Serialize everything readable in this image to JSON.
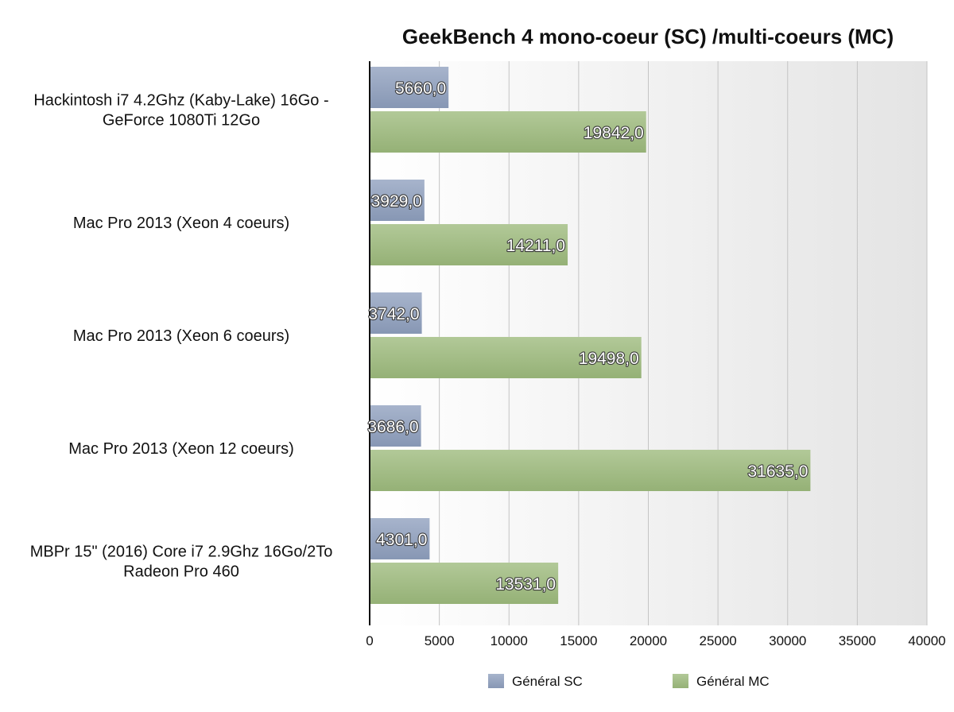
{
  "chart_data": {
    "type": "bar",
    "orientation": "horizontal",
    "title": "GeekBench 4  mono-coeur (SC) /multi-coeurs (MC)",
    "categories": [
      "Hackintosh i7 4.2Ghz (Kaby-Lake) 16Go - GeForce 1080Ti 12Go",
      "Mac Pro 2013 (Xeon 4 coeurs)",
      "Mac Pro 2013 (Xeon 6 coeurs)",
      "Mac Pro 2013 (Xeon 12 coeurs)",
      "MBPr 15\" (2016) Core i7 2.9Ghz 16Go/2To Radeon Pro 460"
    ],
    "category_lines": [
      [
        "Hackintosh i7 4.2Ghz (Kaby-Lake) 16Go -",
        "GeForce 1080Ti 12Go"
      ],
      [
        "Mac Pro 2013 (Xeon 4 coeurs)"
      ],
      [
        "Mac Pro 2013 (Xeon 6 coeurs)"
      ],
      [
        "Mac Pro 2013 (Xeon 12 coeurs)"
      ],
      [
        "MBPr 15\" (2016) Core i7 2.9Ghz 16Go/2To",
        "Radeon Pro 460"
      ]
    ],
    "series": [
      {
        "name": "Général SC",
        "color": "#94a3bf",
        "values": [
          5660,
          3929,
          3742,
          3686,
          4301
        ],
        "labels": [
          "5660,0",
          "3929,0",
          "3742,0",
          "3686,0",
          "4301,0"
        ]
      },
      {
        "name": "Général MC",
        "color": "#a2bc83",
        "values": [
          19842,
          14211,
          19498,
          31635,
          13531
        ],
        "labels": [
          "19842,0",
          "14211,0",
          "19498,0",
          "31635,0",
          "13531,0"
        ]
      }
    ],
    "xlim": [
      0,
      40000
    ],
    "xticks": [
      0,
      5000,
      10000,
      15000,
      20000,
      25000,
      30000,
      35000,
      40000
    ],
    "xtick_labels": [
      "0",
      "5000",
      "10000",
      "15000",
      "20000",
      "25000",
      "30000",
      "35000",
      "40000"
    ],
    "grid": "vertical",
    "legend": "bottom",
    "xlabel": "",
    "ylabel": ""
  }
}
